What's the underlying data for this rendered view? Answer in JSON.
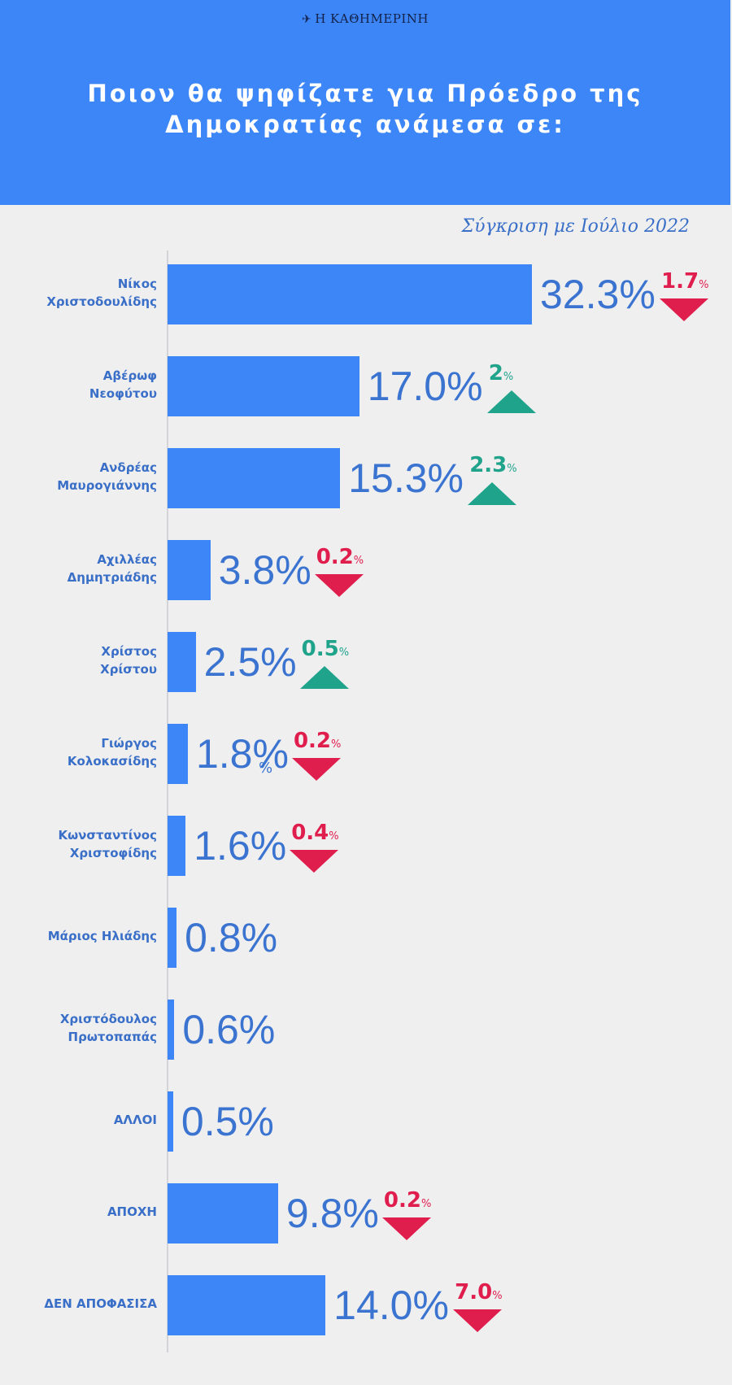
{
  "header": {
    "brand": "Η ΚΑΘΗΜΕΡΙΝΗ",
    "title_line1": "Ποιον θα ψηφίζατε για Πρόεδρο της",
    "title_line2": "Δημοκρατίας ανάμεσα σε:",
    "compare_note": "Σύγκριση με Ιούλιο 2022"
  },
  "colors": {
    "header_bg": "#3d86f7",
    "bar": "#3d86f7",
    "value_text": "#3a74d0",
    "increase": "#1fa38a",
    "decrease": "#e01e4e",
    "background": "#f0eff0"
  },
  "chart_data": {
    "type": "bar",
    "orientation": "horizontal",
    "title": "Ποιον θα ψηφίζατε για Πρόεδρο της Δημοκρατίας ανάμεσα σε:",
    "unit": "%",
    "categories": [
      [
        "Νίκος",
        "Χριστοδουλίδης"
      ],
      [
        "Αβέρωφ",
        "Νεοφύτου"
      ],
      [
        "Ανδρέας",
        "Μαυρογιάννης"
      ],
      [
        "Αχιλλέας",
        "Δημητριάδης"
      ],
      [
        "Χρίστος",
        "Χρίστου"
      ],
      [
        "Γιώργος",
        "Κολοκασίδης"
      ],
      [
        "Κωνσταντίνος",
        "Χριστοφίδης"
      ],
      [
        "Μάριος Ηλιάδης"
      ],
      [
        "Χριστόδουλος",
        "Πρωτοπαπάς"
      ],
      [
        "ΑΛΛΟΙ"
      ],
      [
        "ΑΠΟΧΗ"
      ],
      [
        "ΔΕΝ ΑΠΟΦΑΣΙΣΑ"
      ]
    ],
    "values": [
      32.3,
      17.0,
      15.3,
      3.8,
      2.5,
      1.8,
      1.6,
      0.8,
      0.6,
      0.5,
      9.8,
      14.0
    ],
    "value_labels": [
      "32.3%",
      "17.0%",
      "15.3%",
      "3.8%",
      "2.5%",
      "1.8%",
      "1.6%",
      "0.8%",
      "0.6%",
      "0.5%",
      "9.8%",
      "14.0%"
    ],
    "change_vs_july_2022": [
      {
        "value": "1.7",
        "direction": "down"
      },
      {
        "value": "2",
        "direction": "up"
      },
      {
        "value": "2.3",
        "direction": "up"
      },
      {
        "value": "0.2",
        "direction": "down"
      },
      {
        "value": "0.5",
        "direction": "up"
      },
      {
        "value": "0.2",
        "direction": "down"
      },
      {
        "value": "0.4",
        "direction": "down"
      },
      null,
      null,
      null,
      {
        "value": "0.2",
        "direction": "down"
      },
      {
        "value": "7.0",
        "direction": "down"
      }
    ],
    "change_unit": "%",
    "xlim": [
      0,
      32.3
    ]
  },
  "stray_mark": "%"
}
